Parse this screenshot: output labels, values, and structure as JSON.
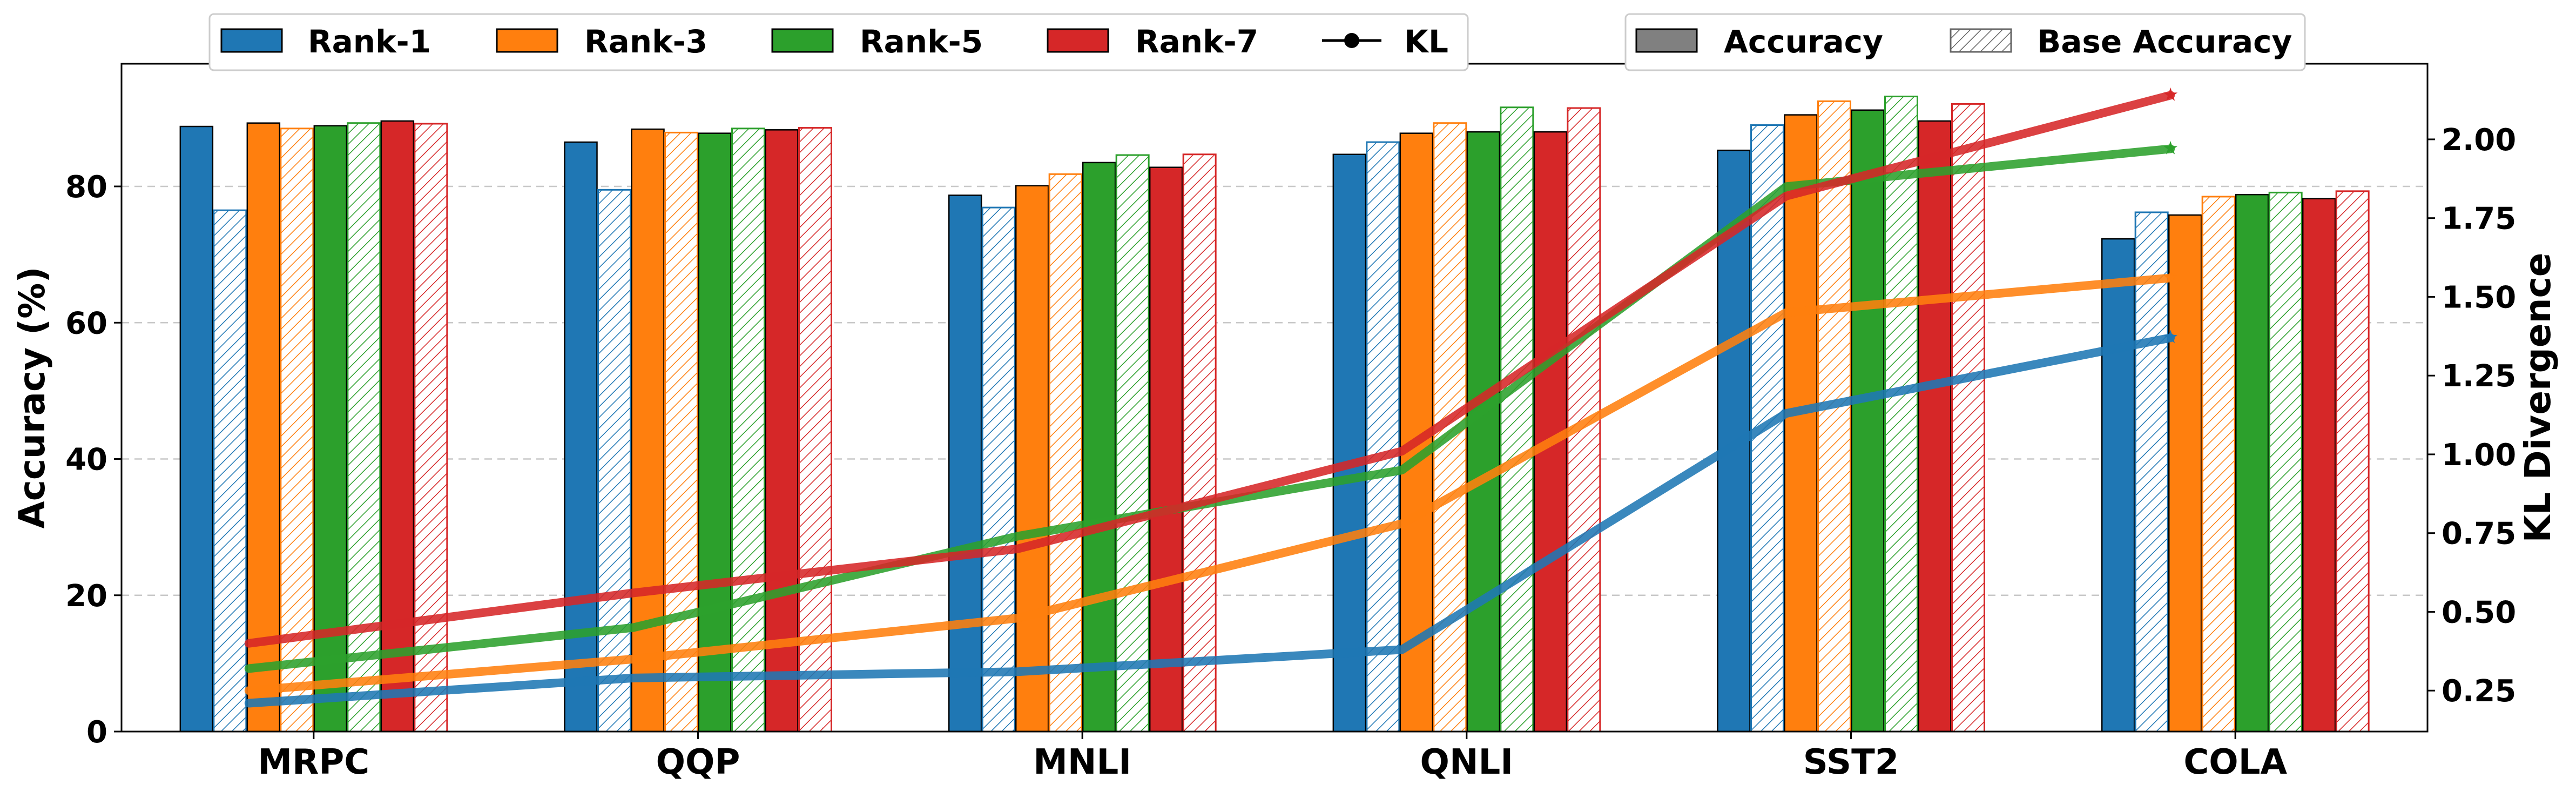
{
  "chart_data": {
    "type": "bar",
    "categories": [
      "MRPC",
      "QQP",
      "MNLI",
      "QNLI",
      "SST2",
      "COLA"
    ],
    "ylabel": "Accuracy (%)",
    "y2label": "KL Divergence",
    "ylim": [
      0,
      98
    ],
    "y2lim": [
      0.12,
      2.24
    ],
    "yticks": [
      0,
      20,
      40,
      60,
      80
    ],
    "y2ticks": [
      0.25,
      0.5,
      0.75,
      1.0,
      1.25,
      1.5,
      1.75,
      2.0
    ],
    "y2tick_labels": [
      "0.25",
      "0.50",
      "0.75",
      "1.00",
      "1.25",
      "1.50",
      "1.75",
      "2.00"
    ],
    "grid": "horizontal dashed",
    "series": [
      {
        "name": "Rank-1",
        "color": "#1f77b4",
        "accuracy": [
          88.8,
          86.5,
          78.7,
          84.7,
          85.3,
          72.3
        ],
        "base_accuracy": [
          76.5,
          79.5,
          76.9,
          86.5,
          89.0,
          76.2
        ],
        "kl": [
          0.21,
          0.29,
          0.31,
          0.38,
          1.13,
          1.37
        ]
      },
      {
        "name": "Rank-3",
        "color": "#ff7f0e",
        "accuracy": [
          89.3,
          88.4,
          80.1,
          87.8,
          90.5,
          75.8
        ],
        "base_accuracy": [
          88.5,
          87.9,
          81.8,
          89.3,
          92.5,
          78.5
        ],
        "kl": [
          0.25,
          0.35,
          0.48,
          0.78,
          1.45,
          1.56
        ]
      },
      {
        "name": "Rank-5",
        "color": "#2ca02c",
        "accuracy": [
          88.9,
          87.8,
          83.5,
          88.0,
          91.2,
          78.8
        ],
        "base_accuracy": [
          89.3,
          88.5,
          84.6,
          91.6,
          93.2,
          79.1
        ],
        "kl": [
          0.32,
          0.45,
          0.74,
          0.95,
          1.85,
          1.97
        ]
      },
      {
        "name": "Rank-7",
        "color": "#d62728",
        "accuracy": [
          89.6,
          88.3,
          82.8,
          88.0,
          89.6,
          78.2
        ],
        "base_accuracy": [
          89.2,
          88.6,
          84.7,
          91.5,
          92.1,
          79.3
        ],
        "kl": [
          0.4,
          0.56,
          0.7,
          1.01,
          1.82,
          2.14
        ]
      }
    ],
    "legend": {
      "left": [
        "Rank-1",
        "Rank-3",
        "Rank-5",
        "Rank-7",
        "KL"
      ],
      "right": [
        "Accuracy",
        "Base Accuracy"
      ],
      "placement": "top"
    }
  }
}
